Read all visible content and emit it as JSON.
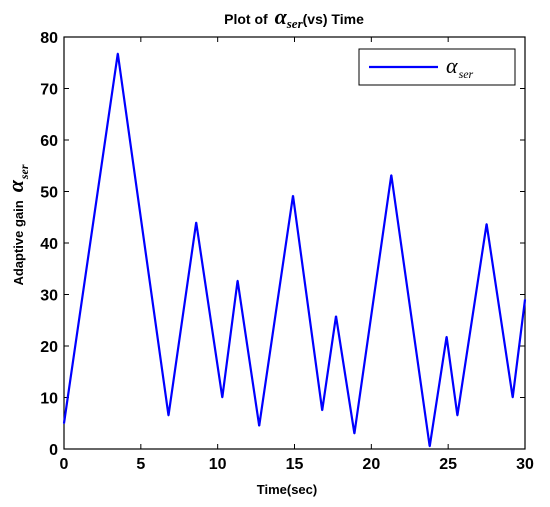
{
  "chart_data": {
    "type": "line",
    "title": {
      "prefix": "Plot of ",
      "symbol": "α",
      "subscript": "ser",
      "suffix": "(vs) Time"
    },
    "xlabel": "Time(sec)",
    "ylabel": {
      "text": "Adaptive gain",
      "symbol": "α",
      "subscript": "ser"
    },
    "xlim": [
      0,
      30
    ],
    "ylim": [
      0,
      80
    ],
    "xticks": [
      0,
      5,
      10,
      15,
      20,
      25,
      30
    ],
    "yticks": [
      0,
      10,
      20,
      30,
      40,
      50,
      60,
      70,
      80
    ],
    "grid": false,
    "legend": {
      "placement": "top-right"
    },
    "series": [
      {
        "name": {
          "symbol": "α",
          "subscript": "ser"
        },
        "color": "#0000ff",
        "x": [
          0,
          3.5,
          6.8,
          8.6,
          10.3,
          11.3,
          12.7,
          14.9,
          16.8,
          17.7,
          18.9,
          21.3,
          23.8,
          24.9,
          25.6,
          27.5,
          29.2,
          30
        ],
        "y": [
          5,
          76.8,
          6.5,
          44,
          10,
          32.7,
          4.5,
          49.2,
          7.5,
          25.8,
          3,
          53.2,
          0.5,
          21.8,
          6.5,
          43.7,
          10,
          29
        ]
      }
    ]
  }
}
